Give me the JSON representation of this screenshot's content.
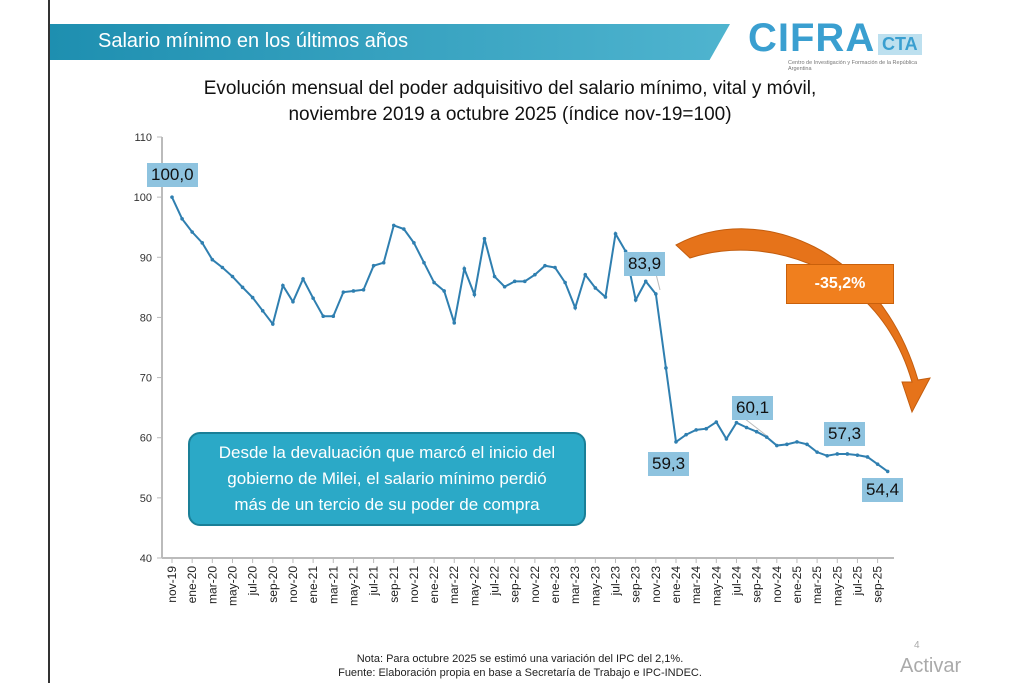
{
  "header": {
    "title": "Salario mínimo en los últimos años"
  },
  "logo": {
    "name": "CIFRA",
    "suffix": "CTA",
    "subtitle": "Centro de Investigación y Formación de la República Argentina"
  },
  "chart_data": {
    "type": "line",
    "title": "Evolución mensual del poder adquisitivo del salario mínimo, vital y móvil, noviembre 2019 a octubre 2025 (índice nov-19=100)",
    "title_lines": [
      "Evolución mensual del poder adquisitivo del salario mínimo, vital y móvil,",
      "noviembre 2019 a octubre 2025 (índice nov-19=100)"
    ],
    "xlabel": "",
    "ylabel": "",
    "ylim": [
      40,
      110
    ],
    "yticks": [
      40,
      50,
      60,
      70,
      80,
      90,
      100,
      110
    ],
    "xticks": [
      "nov-19",
      "ene-20",
      "mar-20",
      "may-20",
      "jul-20",
      "sep-20",
      "nov-20",
      "ene-21",
      "mar-21",
      "may-21",
      "jul-21",
      "sep-21",
      "nov-21",
      "ene-22",
      "mar-22",
      "may-22",
      "jul-22",
      "sep-22",
      "nov-22",
      "ene-23",
      "mar-23",
      "may-23",
      "jul-23",
      "sep-23",
      "nov-23",
      "ene-24",
      "mar-24",
      "may-24",
      "jul-24",
      "sep-24",
      "nov-24",
      "ene-25",
      "mar-25",
      "may-25",
      "jul-25",
      "sep-25"
    ],
    "grid": false,
    "color": "#2f7fb0",
    "series": [
      {
        "values": [
          100.0,
          96.4,
          94.2,
          92.4,
          89.6,
          88.3,
          86.8,
          85.0,
          83.3,
          81.1,
          78.9,
          85.3,
          82.6,
          86.4,
          83.2,
          80.2,
          80.2,
          84.2,
          84.4,
          84.6,
          88.6,
          89.1,
          95.3,
          94.7,
          92.4,
          89.1,
          85.8,
          84.4,
          79.1,
          88.1,
          83.8,
          93.1,
          86.8,
          85.1,
          86.0,
          86.0,
          87.1,
          88.6,
          88.3,
          85.8,
          81.6,
          87.1,
          84.9,
          83.4,
          93.9,
          91.0,
          82.9,
          86.0,
          83.9,
          71.6,
          59.3,
          60.5,
          61.3,
          61.5,
          62.6,
          59.8,
          62.5,
          61.7,
          61.0,
          60.1,
          58.7,
          58.9,
          59.3,
          58.9,
          57.6,
          57.0,
          57.3,
          57.3,
          57.1,
          56.8,
          55.6,
          54.4
        ]
      }
    ],
    "data_labels": [
      {
        "index": 0,
        "text": "100,0"
      },
      {
        "index": 48,
        "text": "83,9"
      },
      {
        "index": 50,
        "text": "59,3"
      },
      {
        "index": 59,
        "text": "60,1"
      },
      {
        "index": 67,
        "text": "57,3"
      },
      {
        "index": 71,
        "text": "54,4"
      }
    ],
    "annotations": {
      "change": "-35,2%",
      "callout": [
        "Desde la devaluación que marcó el inicio del",
        "gobierno de Milei, el salario mínimo perdió",
        "más de un tercio de su poder de compra"
      ]
    }
  },
  "footer": {
    "note": "Nota: Para octubre 2025 se estimó una variación del IPC del 2,1%.",
    "source": "Fuente: Elaboración propia en base a Secretaría de Trabajo e IPC-INDEC.",
    "page": "4",
    "watermark": "Activar"
  }
}
